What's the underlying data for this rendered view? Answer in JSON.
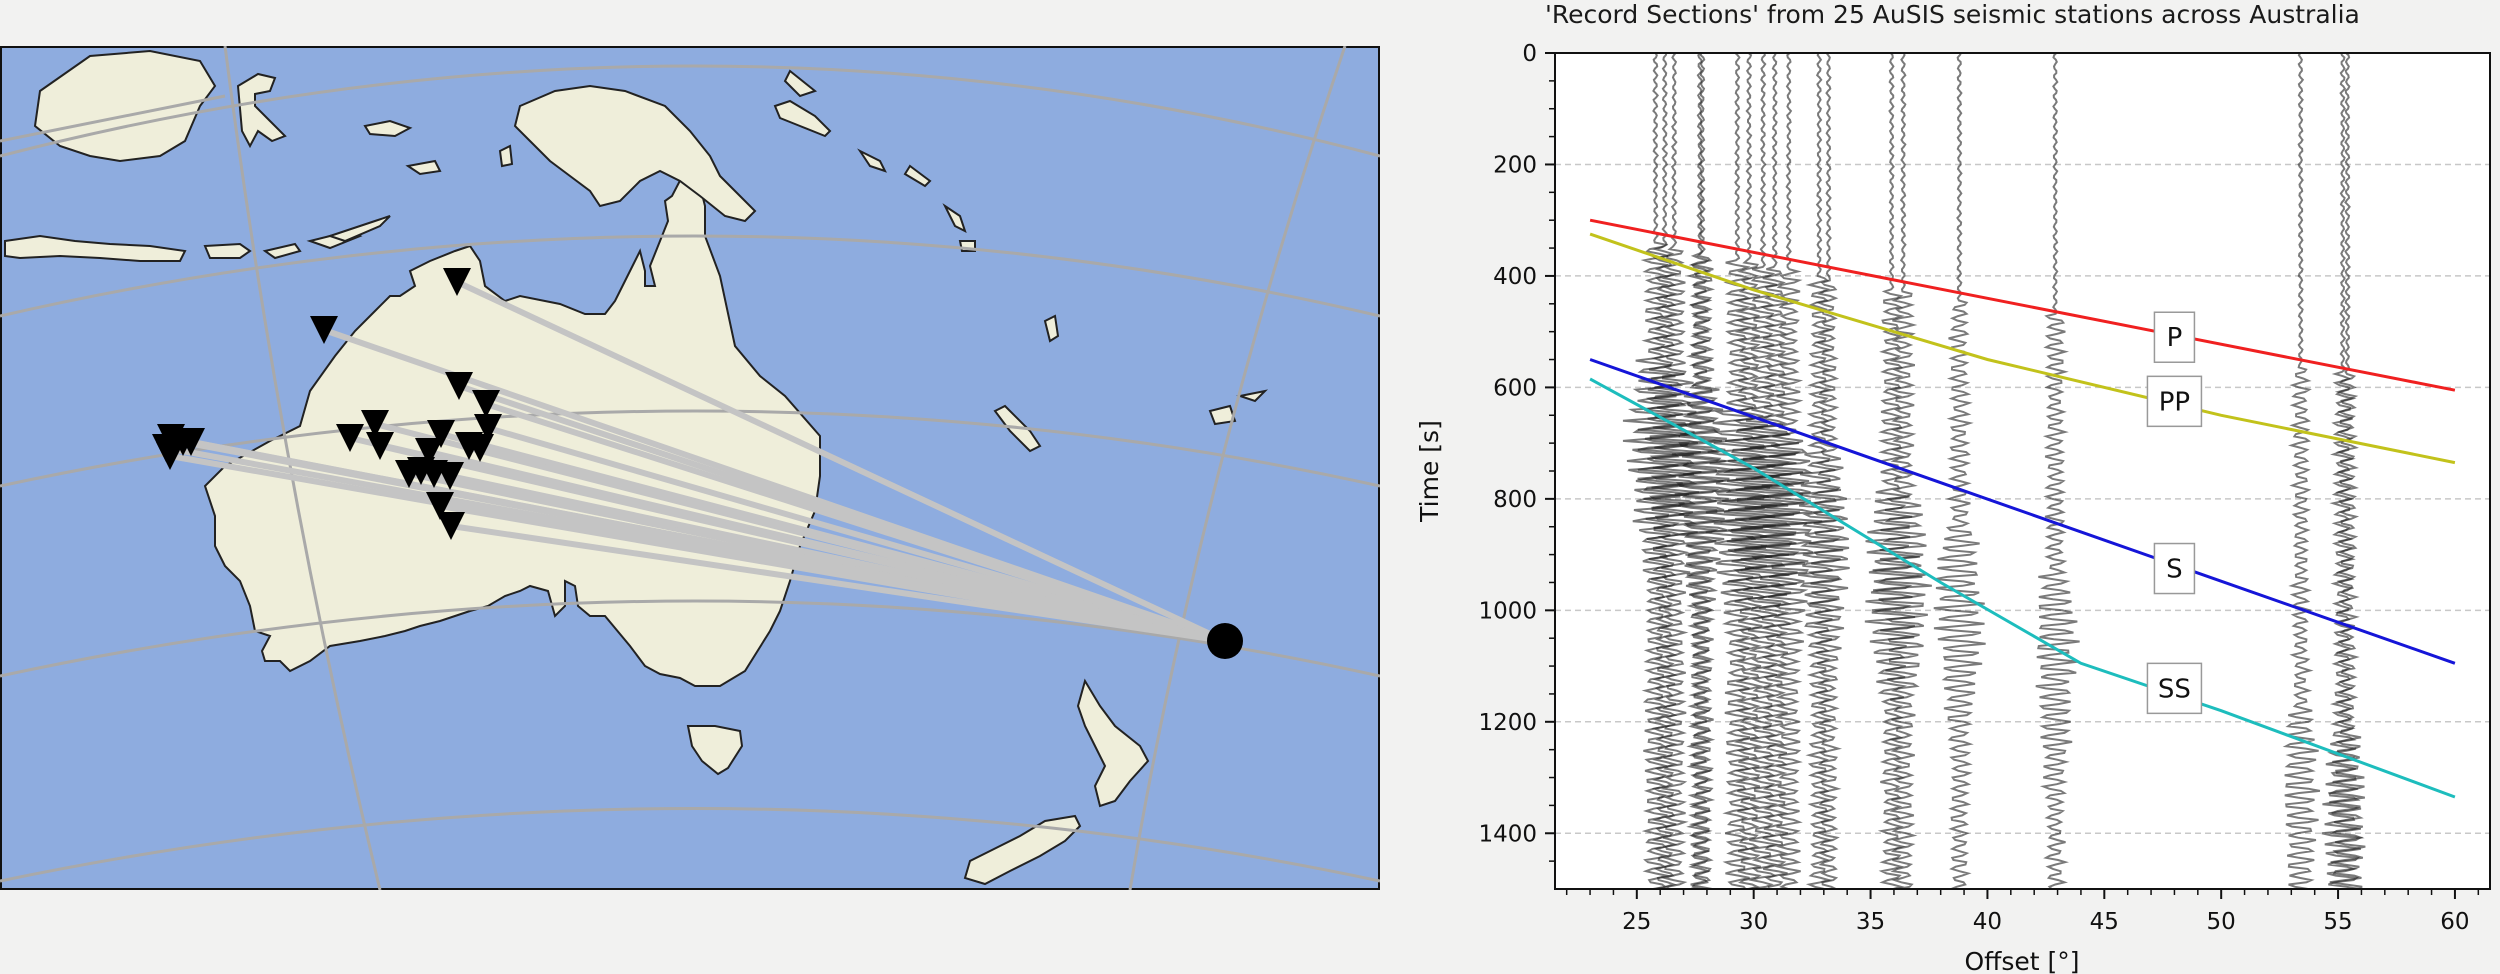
{
  "title": "'Record Sections' from 25 AuSIS seismic stations across Australia",
  "colors": {
    "ocean": "#8eacdf",
    "land": "#efeeda",
    "coast": "#222222",
    "graticule": "#a9a9a9",
    "ray": "#c4c4c4",
    "station": "#000000",
    "trace": "#555555",
    "grid": "#c8c8c8"
  },
  "map": {
    "event_marker": "black-circle",
    "station_marker": "black-inverted-triangle"
  },
  "chart_data": {
    "type": "line",
    "title": "'Record Sections' from 25 AuSIS seismic stations across Australia",
    "xlabel": "Offset [°]",
    "ylabel": "Time [s]",
    "xlim": [
      21.5,
      61.5
    ],
    "ylim": [
      1500,
      0
    ],
    "y_inverted": true,
    "grid": "horizontal dashed",
    "xticks": [
      25,
      30,
      35,
      40,
      45,
      50,
      55,
      60
    ],
    "yticks": [
      0,
      200,
      400,
      600,
      800,
      1000,
      1200,
      1400
    ],
    "series": [
      {
        "name": "P",
        "color": "#f02020",
        "x": [
          23,
          60
        ],
        "y": [
          300,
          605
        ],
        "label_pos": [
          48,
          510
        ]
      },
      {
        "name": "PP",
        "color": "#c2c21b",
        "x": [
          23,
          30,
          40,
          50,
          60
        ],
        "y": [
          325,
          425,
          550,
          650,
          735
        ],
        "label_pos": [
          48,
          625
        ]
      },
      {
        "name": "S",
        "color": "#1515d8",
        "x": [
          23,
          60
        ],
        "y": [
          550,
          1095
        ],
        "label_pos": [
          48,
          925
        ]
      },
      {
        "name": "SS",
        "color": "#1dbdbd",
        "x": [
          23,
          30,
          38,
          44,
          50,
          60
        ],
        "y": [
          585,
          745,
          950,
          1095,
          1180,
          1335
        ],
        "label_pos": [
          48,
          1140
        ]
      }
    ],
    "traces": [
      {
        "offset": 25.8,
        "onset": 340,
        "amp": 0.55
      },
      {
        "offset": 26.2,
        "onset": 345,
        "amp": 0.45
      },
      {
        "offset": 26.6,
        "onset": 350,
        "amp": 0.5
      },
      {
        "offset": 27.7,
        "onset": 360,
        "amp": 0.35
      },
      {
        "offset": 27.8,
        "onset": 362,
        "amp": 0.5
      },
      {
        "offset": 29.3,
        "onset": 370,
        "amp": 0.6
      },
      {
        "offset": 29.8,
        "onset": 375,
        "amp": 0.5
      },
      {
        "offset": 30.4,
        "onset": 380,
        "amp": 0.7
      },
      {
        "offset": 30.9,
        "onset": 385,
        "amp": 0.6
      },
      {
        "offset": 31.5,
        "onset": 390,
        "amp": 0.55
      },
      {
        "offset": 32.8,
        "onset": 400,
        "amp": 0.35
      },
      {
        "offset": 33.2,
        "onset": 405,
        "amp": 0.3
      },
      {
        "offset": 35.9,
        "onset": 425,
        "amp": 0.45
      },
      {
        "offset": 36.4,
        "onset": 430,
        "amp": 0.5
      },
      {
        "offset": 38.8,
        "onset": 445,
        "amp": 0.4
      },
      {
        "offset": 42.9,
        "onset": 470,
        "amp": 0.35
      },
      {
        "offset": 53.4,
        "onset": 560,
        "amp": 0.25
      },
      {
        "offset": 55.2,
        "onset": 575,
        "amp": 0.3
      },
      {
        "offset": 55.4,
        "onset": 578,
        "amp": 0.25
      }
    ]
  }
}
